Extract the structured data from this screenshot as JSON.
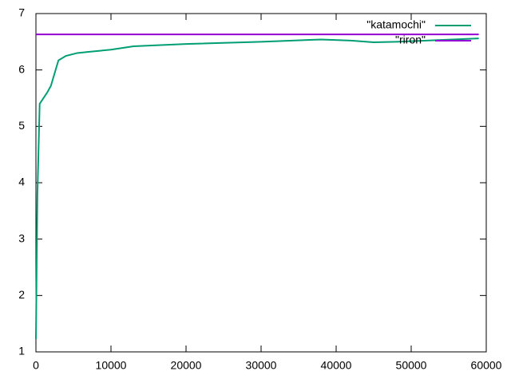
{
  "chart_data": {
    "type": "line",
    "x": [
      0,
      200,
      500,
      1500,
      2000,
      3000,
      4000,
      5500,
      7000,
      10000,
      13000,
      20000,
      30000,
      38000,
      42000,
      45000,
      48000,
      52000,
      59000
    ],
    "series": [
      {
        "name": "\"katamochi\"",
        "color": "#009e73",
        "values": [
          1.23,
          3.8,
          5.4,
          5.6,
          5.72,
          6.17,
          6.25,
          6.3,
          6.32,
          6.36,
          6.42,
          6.46,
          6.5,
          6.54,
          6.52,
          6.49,
          6.5,
          6.52,
          6.56
        ]
      },
      {
        "name": "\"riron\"",
        "color": "#9400d3",
        "values": [
          6.63,
          6.63,
          6.63,
          6.63,
          6.63,
          6.63,
          6.63,
          6.63,
          6.63,
          6.63,
          6.63,
          6.63,
          6.63,
          6.63,
          6.63,
          6.63,
          6.63,
          6.63,
          6.63
        ]
      }
    ],
    "xlim": [
      0,
      60000
    ],
    "ylim": [
      1,
      7
    ],
    "xticks": [
      0,
      10000,
      20000,
      30000,
      40000,
      50000,
      60000
    ],
    "yticks": [
      1,
      2,
      3,
      4,
      5,
      6,
      7
    ],
    "legend": "top-right"
  }
}
